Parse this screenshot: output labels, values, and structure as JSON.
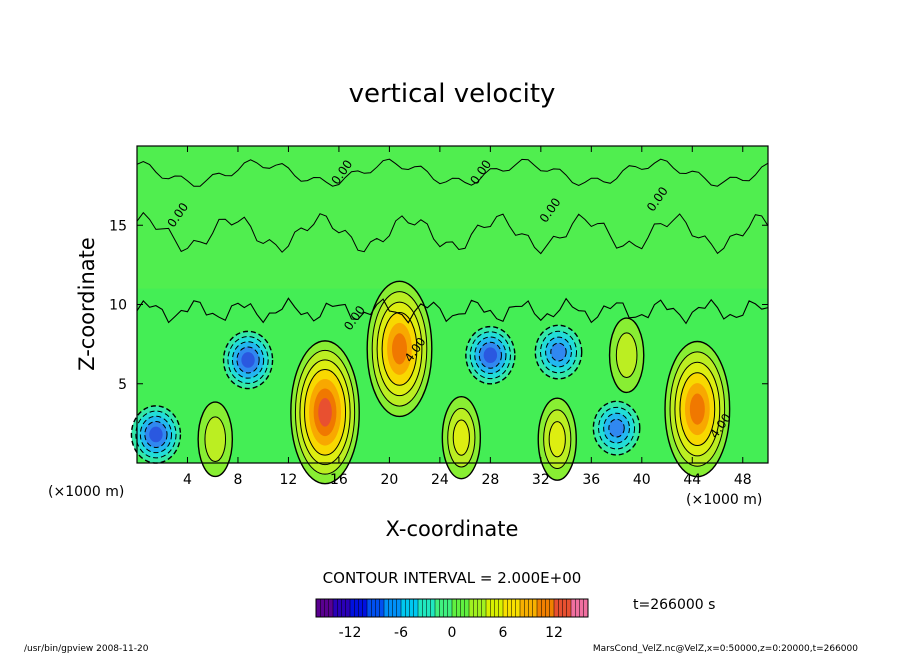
{
  "chart_data": {
    "type": "heatmap",
    "title": "vertical velocity",
    "xlabel": "X-coordinate",
    "ylabel": "Z-coordinate",
    "x_unit_left": "(×1000 m)",
    "x_unit_right": "(×1000 m)",
    "xlim": [
      0,
      50
    ],
    "ylim": [
      0,
      20
    ],
    "x_ticks": [
      "4",
      "8",
      "12",
      "16",
      "20",
      "24",
      "28",
      "32",
      "36",
      "40",
      "44",
      "48"
    ],
    "x_tick_values": [
      4,
      8,
      12,
      16,
      20,
      24,
      28,
      32,
      36,
      40,
      44,
      48
    ],
    "y_ticks": [
      "5",
      "10",
      "15"
    ],
    "y_tick_values": [
      5,
      10,
      15
    ],
    "contour_interval_text": "CONTOUR INTERVAL = 2.000E+00",
    "time_text": "t=266000 s",
    "colorbar": {
      "range": [
        -16,
        16
      ],
      "ticks": [
        "-12",
        "-6",
        "0",
        "6",
        "12"
      ],
      "tick_values": [
        -12,
        -6,
        0,
        6,
        12
      ],
      "colors": [
        "#5a0090",
        "#2a00b8",
        "#0010e0",
        "#0050f0",
        "#0090f8",
        "#00c8f0",
        "#20e8c0",
        "#40f080",
        "#60f040",
        "#a0f020",
        "#d8f000",
        "#f8e000",
        "#f8b000",
        "#f08000",
        "#e85030",
        "#f070a0"
      ]
    },
    "contour_labels": [
      "0.00",
      "0.00",
      "0.00",
      "0.00",
      "0.00",
      "0.00",
      "4.00",
      "4.00"
    ],
    "features": [
      {
        "kind": "updraft",
        "x": 14.9,
        "z": 3.2,
        "peak": 13
      },
      {
        "kind": "updraft",
        "x": 20.8,
        "z": 7.2,
        "peak": 12
      },
      {
        "kind": "updraft",
        "x": 44.4,
        "z": 3.4,
        "peak": 12
      },
      {
        "kind": "updraft",
        "x": 25.7,
        "z": 1.6,
        "peak": 5
      },
      {
        "kind": "updraft",
        "x": 38.8,
        "z": 6.8,
        "peak": 4
      },
      {
        "kind": "updraft",
        "x": 33.3,
        "z": 1.5,
        "peak": 5
      },
      {
        "kind": "updraft",
        "x": 6.2,
        "z": 1.5,
        "peak": 4
      },
      {
        "kind": "downdraft",
        "x": 1.5,
        "z": 1.8,
        "peak": -7
      },
      {
        "kind": "downdraft",
        "x": 8.8,
        "z": 6.5,
        "peak": -7
      },
      {
        "kind": "downdraft",
        "x": 28.0,
        "z": 6.8,
        "peak": -7
      },
      {
        "kind": "downdraft",
        "x": 33.4,
        "z": 7.0,
        "peak": -6
      },
      {
        "kind": "downdraft",
        "x": 38.0,
        "z": 2.2,
        "peak": -6
      }
    ]
  },
  "footer": {
    "program": "/usr/bin/gpview  2008-11-20",
    "source": "MarsCond_VelZ.nc@VelZ,x=0:50000,z=0:20000,t=266000"
  }
}
